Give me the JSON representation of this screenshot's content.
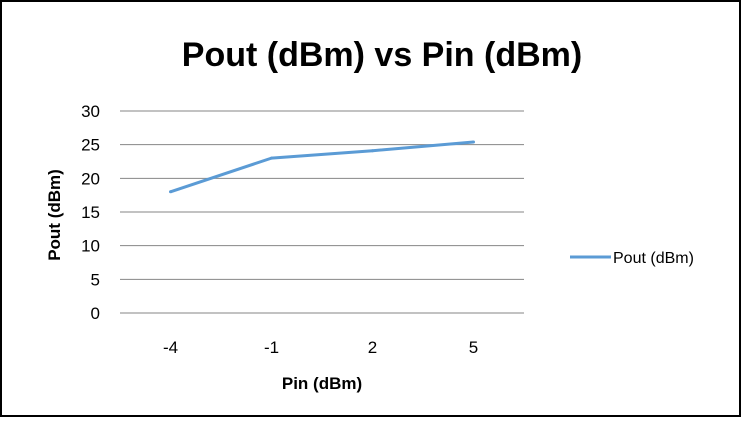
{
  "colors": {
    "background": "#ffffff",
    "border": "#000000",
    "grid": "#868686",
    "series": "#5b9bd5",
    "text": "#000000"
  },
  "chart_data": {
    "type": "line",
    "title": "Pout (dBm) vs Pin (dBm)",
    "xlabel": "Pin (dBm)",
    "ylabel": "Pout (dBm)",
    "categories": [
      "-4",
      "-1",
      "2",
      "5"
    ],
    "series": [
      {
        "name": "Pout (dBm)",
        "values": [
          18,
          23,
          24.1,
          25.4
        ]
      }
    ],
    "ylim": [
      0,
      30
    ],
    "yticks": [
      "0",
      "5",
      "10",
      "15",
      "20",
      "25",
      "30"
    ],
    "grid": "horizontal",
    "legend": "right"
  }
}
